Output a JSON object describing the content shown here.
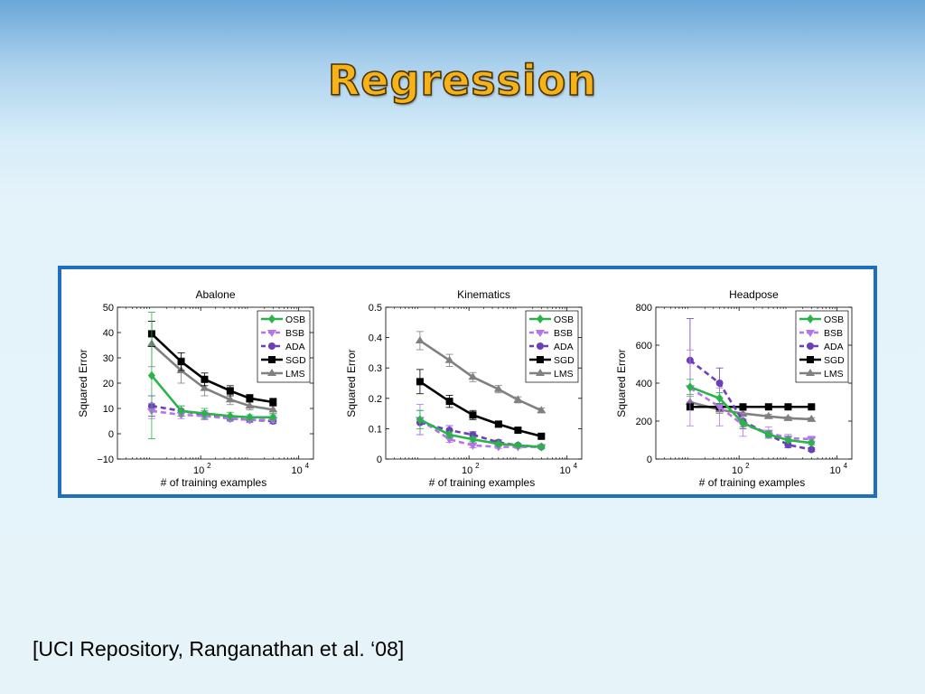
{
  "slide": {
    "title": "Regression",
    "citation": "[UCI Repository, Ranganathan et al. ‘08]"
  },
  "legend_series": [
    "OSB",
    "BSB",
    "ADA",
    "SGD",
    "LMS"
  ],
  "colors": {
    "OSB": "#2bb34a",
    "BSB": "#b574ec",
    "ADA": "#6b3fb8",
    "SGD": "#000000",
    "LMS": "#808080",
    "frame": "#1f6fc1",
    "title": "#f6b21b"
  },
  "chart_data": [
    {
      "type": "line",
      "title": "Abalone",
      "xlabel": "# of training examples",
      "ylabel": "Squared Error",
      "xscale": "log",
      "xlim": [
        2,
        20000
      ],
      "ylim": [
        -10,
        50
      ],
      "yticks": [
        -10,
        0,
        10,
        20,
        30,
        40,
        50
      ],
      "yticklabels": [
        "−10",
        "0",
        "10",
        "20",
        "30",
        "40",
        "50"
      ],
      "xticks": [
        100,
        10000
      ],
      "xticklabels": [
        "10",
        "10"
      ],
      "xtick_exponents": [
        "2",
        "4"
      ],
      "legend": "top-right",
      "x": [
        10,
        40,
        120,
        400,
        1000,
        3000
      ],
      "series": [
        {
          "name": "OSB",
          "values": [
            23,
            9,
            8,
            7,
            6.5,
            6.5
          ],
          "err": [
            25,
            2,
            2,
            1.5,
            1,
            1
          ]
        },
        {
          "name": "BSB",
          "values": [
            9,
            7.5,
            7,
            6,
            5.5,
            5.5
          ],
          "err": [
            3,
            1.5,
            1.5,
            1,
            1,
            1
          ]
        },
        {
          "name": "ADA",
          "values": [
            11,
            9,
            7.5,
            6,
            5.5,
            5
          ],
          "err": [
            4,
            2,
            1.5,
            1,
            1,
            1
          ]
        },
        {
          "name": "SGD",
          "values": [
            39.5,
            28.5,
            21.5,
            17,
            14,
            12.5
          ],
          "err": [
            5,
            3.5,
            2.5,
            2,
            1.5,
            1.5
          ]
        },
        {
          "name": "LMS",
          "values": [
            35.5,
            25,
            18,
            13.5,
            11,
            9.5
          ],
          "err": [
            9,
            5,
            3,
            2,
            1.5,
            1.5
          ]
        }
      ]
    },
    {
      "type": "line",
      "title": "Kinematics",
      "xlabel": "# of training examples",
      "ylabel": "Squared Error",
      "xscale": "log",
      "xlim": [
        2,
        20000
      ],
      "ylim": [
        0,
        0.5
      ],
      "yticks": [
        0,
        0.1,
        0.2,
        0.3,
        0.4,
        0.5
      ],
      "yticklabels": [
        "0",
        "0.1",
        "0.2",
        "0.3",
        "0.4",
        "0.5"
      ],
      "xticks": [
        100,
        10000
      ],
      "xticklabels": [
        "10",
        "10"
      ],
      "xtick_exponents": [
        "2",
        "4"
      ],
      "legend": "top-right",
      "x": [
        10,
        40,
        120,
        400,
        1000,
        3000
      ],
      "series": [
        {
          "name": "OSB",
          "values": [
            0.13,
            0.08,
            0.065,
            0.05,
            0.045,
            0.04
          ],
          "err": [
            0.03,
            0.01,
            0.008,
            0.006,
            0.005,
            0.005
          ]
        },
        {
          "name": "BSB",
          "values": [
            0.13,
            0.065,
            0.045,
            0.04,
            0.04,
            0.04
          ],
          "err": [
            0.05,
            0.01,
            0.008,
            0.005,
            0.005,
            0.005
          ]
        },
        {
          "name": "ADA",
          "values": [
            0.12,
            0.095,
            0.08,
            0.055,
            0.045,
            0.04
          ],
          "err": [
            0.04,
            0.015,
            0.01,
            0.008,
            0.005,
            0.005
          ]
        },
        {
          "name": "SGD",
          "values": [
            0.255,
            0.19,
            0.145,
            0.115,
            0.095,
            0.075
          ],
          "err": [
            0.04,
            0.02,
            0.015,
            0.01,
            0.008,
            0.006
          ]
        },
        {
          "name": "LMS",
          "values": [
            0.39,
            0.325,
            0.27,
            0.23,
            0.195,
            0.16
          ],
          "err": [
            0.03,
            0.02,
            0.015,
            0.012,
            0.01,
            0.008
          ]
        }
      ]
    },
    {
      "type": "line",
      "title": "Headpose",
      "xlabel": "# of training examples",
      "ylabel": "Squared Error",
      "xscale": "log",
      "xlim": [
        2,
        20000
      ],
      "ylim": [
        0,
        800
      ],
      "yticks": [
        0,
        200,
        400,
        600,
        800
      ],
      "yticklabels": [
        "0",
        "200",
        "400",
        "600",
        "800"
      ],
      "xticks": [
        100,
        10000
      ],
      "xticklabels": [
        "10",
        "10"
      ],
      "xtick_exponents": [
        "2",
        "4"
      ],
      "legend": "top-right",
      "x": [
        10,
        40,
        120,
        400,
        1000,
        3000
      ],
      "series": [
        {
          "name": "OSB",
          "values": [
            380,
            320,
            190,
            130,
            100,
            85
          ],
          "err": [
            40,
            30,
            20,
            15,
            10,
            10
          ]
        },
        {
          "name": "BSB",
          "values": [
            375,
            275,
            180,
            140,
            110,
            105
          ],
          "err": [
            200,
            100,
            60,
            30,
            20,
            15
          ]
        },
        {
          "name": "ADA",
          "values": [
            520,
            400,
            200,
            130,
            75,
            50
          ],
          "err": [
            220,
            80,
            40,
            20,
            15,
            10
          ]
        },
        {
          "name": "SGD",
          "values": [
            275,
            275,
            275,
            275,
            275,
            275
          ],
          "err": [
            15,
            8,
            6,
            5,
            5,
            5
          ]
        },
        {
          "name": "LMS",
          "values": [
            300,
            260,
            240,
            225,
            215,
            210
          ],
          "err": [
            30,
            20,
            15,
            10,
            8,
            8
          ]
        }
      ]
    }
  ]
}
